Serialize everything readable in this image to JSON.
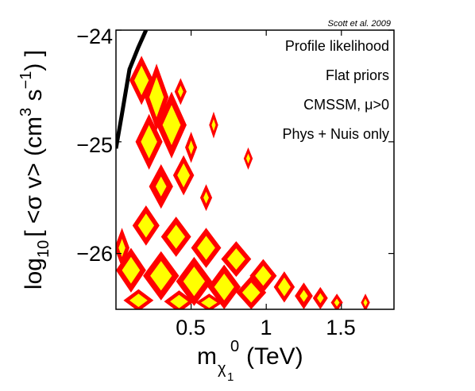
{
  "chart_data": {
    "type": "contour",
    "credit": "Scott et al. 2009",
    "annotations": [
      "Profile likelihood",
      "Flat priors",
      "CMSSM, μ>0",
      "Phys + Nuis only"
    ],
    "xlabel": {
      "main": "m",
      "sub": "χ",
      "subsub": "1",
      "sup": "0",
      "unit": "(TeV)"
    },
    "ylabel": {
      "pre": "log",
      "sub": "10",
      "text": "[ <σ v> (cm",
      "sup1": "3",
      "mid": " s",
      "sup2": "−1",
      "end": ") ]"
    },
    "xlim": [
      0.0,
      1.85
    ],
    "ylim": [
      -26.5,
      -24.0
    ],
    "xticks": [
      0.5,
      1.0,
      1.5
    ],
    "xtick_labels": [
      "0.5",
      "1",
      "1.5"
    ],
    "yticks": [
      -24,
      -25,
      -26
    ],
    "ytick_labels": [
      "−24",
      "−25",
      "−26"
    ],
    "colors": {
      "outer_region": "#ff0000",
      "inner_region": "#ffff00",
      "bound_line": "#000000"
    },
    "series": [
      {
        "name": "",
        "type": "line",
        "x": [
          0.0,
          0.04,
          0.09,
          0.15,
          0.2
        ],
        "y": [
          -25.06,
          -24.75,
          -24.35,
          -24.15,
          -24.0
        ]
      },
      {
        "name": "",
        "type": "regions",
        "regions": [
          {
            "cx": 0.17,
            "cy": -24.45,
            "rx": 0.08,
            "ry": 0.22,
            "core": true
          },
          {
            "cx": 0.27,
            "cy": -24.6,
            "rx": 0.08,
            "ry": 0.3,
            "core": true
          },
          {
            "cx": 0.37,
            "cy": -24.85,
            "rx": 0.1,
            "ry": 0.3,
            "core": true
          },
          {
            "cx": 0.22,
            "cy": -25.0,
            "rx": 0.09,
            "ry": 0.25,
            "core": true
          },
          {
            "cx": 0.45,
            "cy": -25.3,
            "rx": 0.07,
            "ry": 0.18,
            "core": true
          },
          {
            "cx": 0.3,
            "cy": -25.4,
            "rx": 0.08,
            "ry": 0.2,
            "core": false
          },
          {
            "cx": 0.43,
            "cy": -24.55,
            "rx": 0.04,
            "ry": 0.12,
            "core": false
          },
          {
            "cx": 0.65,
            "cy": -24.85,
            "rx": 0.03,
            "ry": 0.12,
            "core": false
          },
          {
            "cx": 0.5,
            "cy": -25.05,
            "rx": 0.04,
            "ry": 0.14,
            "core": false
          },
          {
            "cx": 0.88,
            "cy": -25.15,
            "rx": 0.03,
            "ry": 0.1,
            "core": false
          },
          {
            "cx": 0.6,
            "cy": -25.5,
            "rx": 0.04,
            "ry": 0.12,
            "core": false
          },
          {
            "cx": 0.2,
            "cy": -25.75,
            "rx": 0.09,
            "ry": 0.18,
            "core": true
          },
          {
            "cx": 0.4,
            "cy": -25.85,
            "rx": 0.1,
            "ry": 0.18,
            "core": true
          },
          {
            "cx": 0.6,
            "cy": -25.95,
            "rx": 0.1,
            "ry": 0.18,
            "core": true
          },
          {
            "cx": 0.8,
            "cy": -26.05,
            "rx": 0.1,
            "ry": 0.16,
            "core": true
          },
          {
            "cx": 0.98,
            "cy": -26.2,
            "rx": 0.09,
            "ry": 0.15,
            "core": true
          },
          {
            "cx": 0.1,
            "cy": -26.15,
            "rx": 0.1,
            "ry": 0.2,
            "core": true
          },
          {
            "cx": 0.3,
            "cy": -26.2,
            "rx": 0.12,
            "ry": 0.22,
            "core": true
          },
          {
            "cx": 0.52,
            "cy": -26.25,
            "rx": 0.12,
            "ry": 0.22,
            "core": true
          },
          {
            "cx": 0.72,
            "cy": -26.3,
            "rx": 0.11,
            "ry": 0.2,
            "core": true
          },
          {
            "cx": 0.9,
            "cy": -26.35,
            "rx": 0.1,
            "ry": 0.15,
            "core": true
          },
          {
            "cx": 1.12,
            "cy": -26.3,
            "rx": 0.07,
            "ry": 0.14,
            "core": true
          },
          {
            "cx": 1.25,
            "cy": -26.38,
            "rx": 0.06,
            "ry": 0.12,
            "core": false
          },
          {
            "cx": 1.36,
            "cy": -26.4,
            "rx": 0.05,
            "ry": 0.1,
            "core": false
          },
          {
            "cx": 1.47,
            "cy": -26.44,
            "rx": 0.04,
            "ry": 0.08,
            "core": false
          },
          {
            "cx": 1.66,
            "cy": -26.44,
            "rx": 0.03,
            "ry": 0.08,
            "core": false
          },
          {
            "cx": 0.04,
            "cy": -25.95,
            "rx": 0.05,
            "ry": 0.18,
            "core": false
          },
          {
            "cx": 0.15,
            "cy": -26.42,
            "rx": 0.1,
            "ry": 0.1,
            "core": true
          },
          {
            "cx": 0.42,
            "cy": -26.43,
            "rx": 0.1,
            "ry": 0.1,
            "core": true
          },
          {
            "cx": 0.62,
            "cy": -26.44,
            "rx": 0.09,
            "ry": 0.08,
            "core": true
          }
        ]
      }
    ],
    "grid": false,
    "legend": "none"
  }
}
